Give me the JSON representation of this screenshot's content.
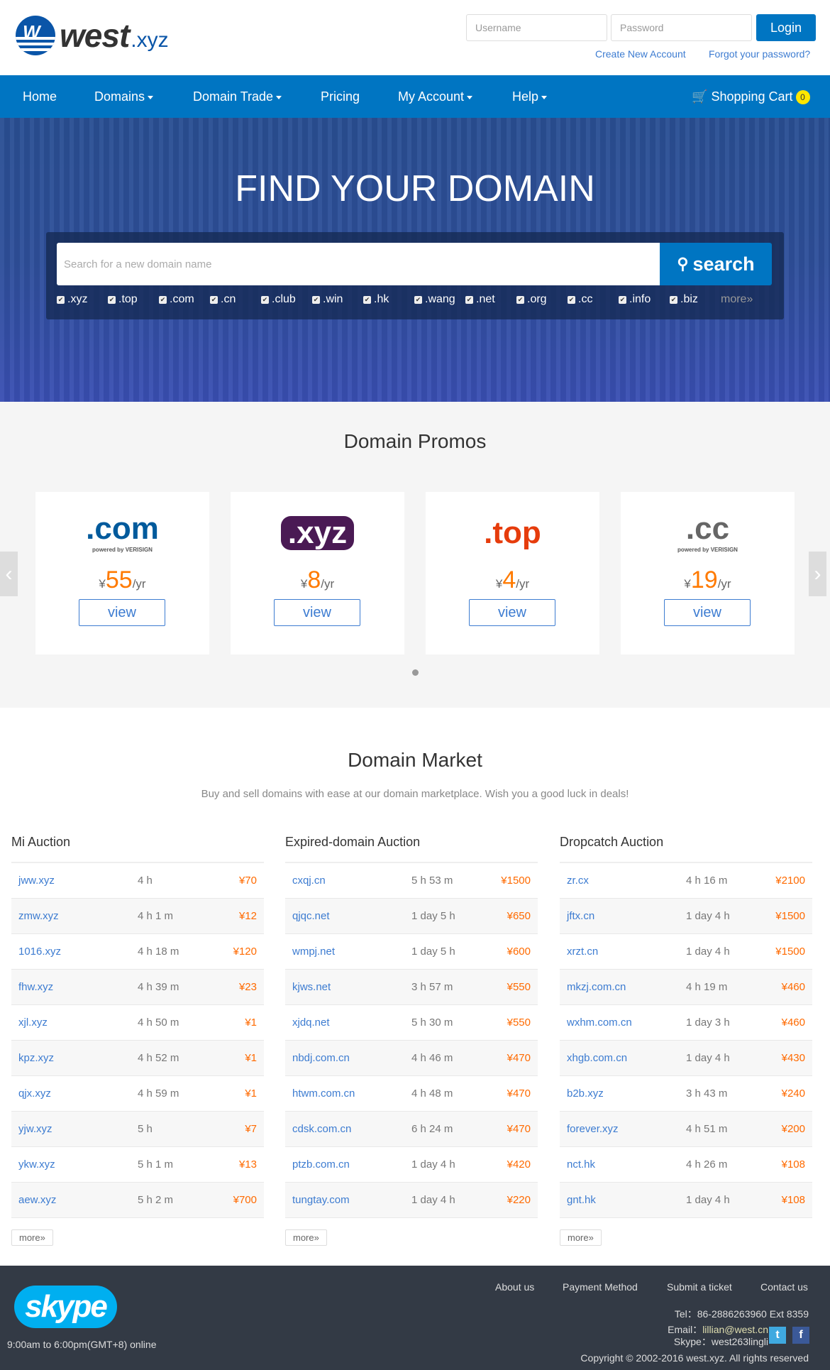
{
  "header": {
    "logo_main": "west",
    "logo_ext": ".xyz",
    "username_placeholder": "Username",
    "password_placeholder": "Password",
    "login": "Login",
    "create_account": "Create New Account",
    "forgot_password": "Forgot your password?"
  },
  "nav": {
    "items": [
      "Home",
      "Domains",
      "Domain Trade",
      "Pricing",
      "My Account",
      "Help"
    ],
    "cart": "Shopping Cart",
    "cart_count": "0"
  },
  "hero": {
    "title": "FIND YOUR DOMAIN",
    "search_placeholder": "Search for a new domain name",
    "search_button": "search",
    "tlds": [
      ".xyz",
      ".top",
      ".com",
      ".cn",
      ".club",
      ".win",
      ".hk",
      ".wang",
      ".net",
      ".org",
      ".cc",
      ".info",
      ".biz"
    ],
    "more": "more»"
  },
  "promos": {
    "title": "Domain Promos",
    "currency": "¥",
    "unit": "/yr",
    "view": "view",
    "cards": [
      {
        "logo": ".com",
        "logo_sub": "powered by VERISIGN",
        "price": "55",
        "color": "#005a9c"
      },
      {
        "logo": ".xyz",
        "logo_sub": "",
        "price": "8",
        "color": "#4a1a54"
      },
      {
        "logo": ".top",
        "logo_sub": "",
        "price": "4",
        "color": "#e63c0c"
      },
      {
        "logo": ".cc",
        "logo_sub": "powered by VERISIGN",
        "price": "19",
        "color": "#666666"
      }
    ]
  },
  "market": {
    "title": "Domain Market",
    "subtitle": "Buy and sell domains with ease at our domain marketplace. Wish you a good luck in deals!",
    "more": "more»",
    "columns": [
      {
        "title": "Mi Auction",
        "rows": [
          [
            "jww.xyz",
            "4 h",
            "¥70"
          ],
          [
            "zmw.xyz",
            "4 h 1 m",
            "¥12"
          ],
          [
            "1016.xyz",
            "4 h 18 m",
            "¥120"
          ],
          [
            "fhw.xyz",
            "4 h 39 m",
            "¥23"
          ],
          [
            "xjl.xyz",
            "4 h 50 m",
            "¥1"
          ],
          [
            "kpz.xyz",
            "4 h 52 m",
            "¥1"
          ],
          [
            "qjx.xyz",
            "4 h 59 m",
            "¥1"
          ],
          [
            "yjw.xyz",
            "5 h",
            "¥7"
          ],
          [
            "ykw.xyz",
            "5 h 1 m",
            "¥13"
          ],
          [
            "aew.xyz",
            "5 h 2 m",
            "¥700"
          ]
        ]
      },
      {
        "title": "Expired-domain Auction",
        "rows": [
          [
            "cxqj.cn",
            "5 h 53 m",
            "¥1500"
          ],
          [
            "qjqc.net",
            "1 day 5 h",
            "¥650"
          ],
          [
            "wmpj.net",
            "1 day 5 h",
            "¥600"
          ],
          [
            "kjws.net",
            "3 h 57 m",
            "¥550"
          ],
          [
            "xjdq.net",
            "5 h 30 m",
            "¥550"
          ],
          [
            "nbdj.com.cn",
            "4 h 46 m",
            "¥470"
          ],
          [
            "htwm.com.cn",
            "4 h 48 m",
            "¥470"
          ],
          [
            "cdsk.com.cn",
            "6 h 24 m",
            "¥470"
          ],
          [
            "ptzb.com.cn",
            "1 day 4 h",
            "¥420"
          ],
          [
            "tungtay.com",
            "1 day 4 h",
            "¥220"
          ]
        ]
      },
      {
        "title": "Dropcatch Auction",
        "rows": [
          [
            "zr.cx",
            "4 h 16 m",
            "¥2100"
          ],
          [
            "jftx.cn",
            "1 day 4 h",
            "¥1500"
          ],
          [
            "xrzt.cn",
            "1 day 4 h",
            "¥1500"
          ],
          [
            "mkzj.com.cn",
            "4 h 19 m",
            "¥460"
          ],
          [
            "wxhm.com.cn",
            "1 day 3 h",
            "¥460"
          ],
          [
            "xhgb.com.cn",
            "1 day 4 h",
            "¥430"
          ],
          [
            "b2b.xyz",
            "3 h 43 m",
            "¥240"
          ],
          [
            "forever.xyz",
            "4 h 51 m",
            "¥200"
          ],
          [
            "nct.hk",
            "4 h 26 m",
            "¥108"
          ],
          [
            "gnt.hk",
            "1 day 4 h",
            "¥108"
          ]
        ]
      }
    ]
  },
  "footer": {
    "links": [
      "About us",
      "Payment Method",
      "Submit a ticket",
      "Contact us"
    ],
    "skype_logo": "skype",
    "hours": "9:00am to 6:00pm(GMT+8) online",
    "tel": "Tel：86-2886263960 Ext 8359",
    "email_label": "Email：",
    "email": "lillian@west.cn",
    "skype": "Skype：west263lingli",
    "copyright": "Copyright © 2002-2016 west.xyz. All rights reserved"
  }
}
